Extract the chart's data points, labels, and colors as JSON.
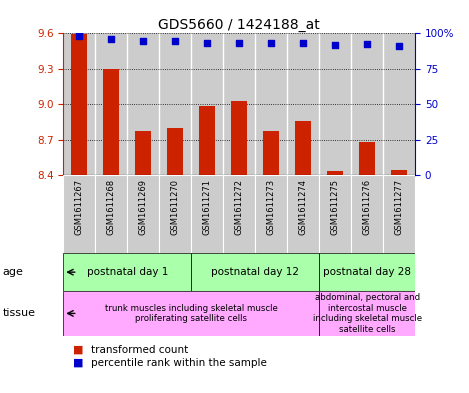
{
  "title": "GDS5660 / 1424188_at",
  "samples": [
    "GSM1611267",
    "GSM1611268",
    "GSM1611269",
    "GSM1611270",
    "GSM1611271",
    "GSM1611272",
    "GSM1611273",
    "GSM1611274",
    "GSM1611275",
    "GSM1611276",
    "GSM1611277"
  ],
  "bar_values": [
    9.597,
    9.296,
    8.776,
    8.797,
    8.986,
    9.023,
    8.768,
    8.855,
    8.43,
    8.676,
    8.44
  ],
  "dot_values": [
    98.5,
    96.0,
    94.5,
    94.5,
    93.5,
    93.5,
    93.5,
    93.0,
    91.5,
    92.5,
    91.0
  ],
  "ylim_left": [
    8.4,
    9.6
  ],
  "ylim_right": [
    0,
    100
  ],
  "yticks_left": [
    8.4,
    8.7,
    9.0,
    9.3,
    9.6
  ],
  "yticks_right": [
    0,
    25,
    50,
    75,
    100
  ],
  "bar_color": "#cc2200",
  "dot_color": "#0000cc",
  "bar_bottom": 8.4,
  "age_groups": [
    {
      "label": "postnatal day 1",
      "start": 0,
      "end": 3
    },
    {
      "label": "postnatal day 12",
      "start": 4,
      "end": 7
    },
    {
      "label": "postnatal day 28",
      "start": 8,
      "end": 10
    }
  ],
  "tissue_groups": [
    {
      "label": "trunk muscles including skeletal muscle\nproliferating satellite cells",
      "start": 0,
      "end": 7
    },
    {
      "label": "abdominal, pectoral and\nintercostal muscle\nincluding skeletal muscle\nsatellite cells",
      "start": 8,
      "end": 10
    }
  ],
  "age_color": "#aaffaa",
  "tissue_color": "#ffaaff",
  "sample_bg_color": "#cccccc",
  "legend_bar_label": "transformed count",
  "legend_dot_label": "percentile rank within the sample",
  "title_fontsize": 10,
  "tick_fontsize": 7.5,
  "label_fontsize": 8
}
